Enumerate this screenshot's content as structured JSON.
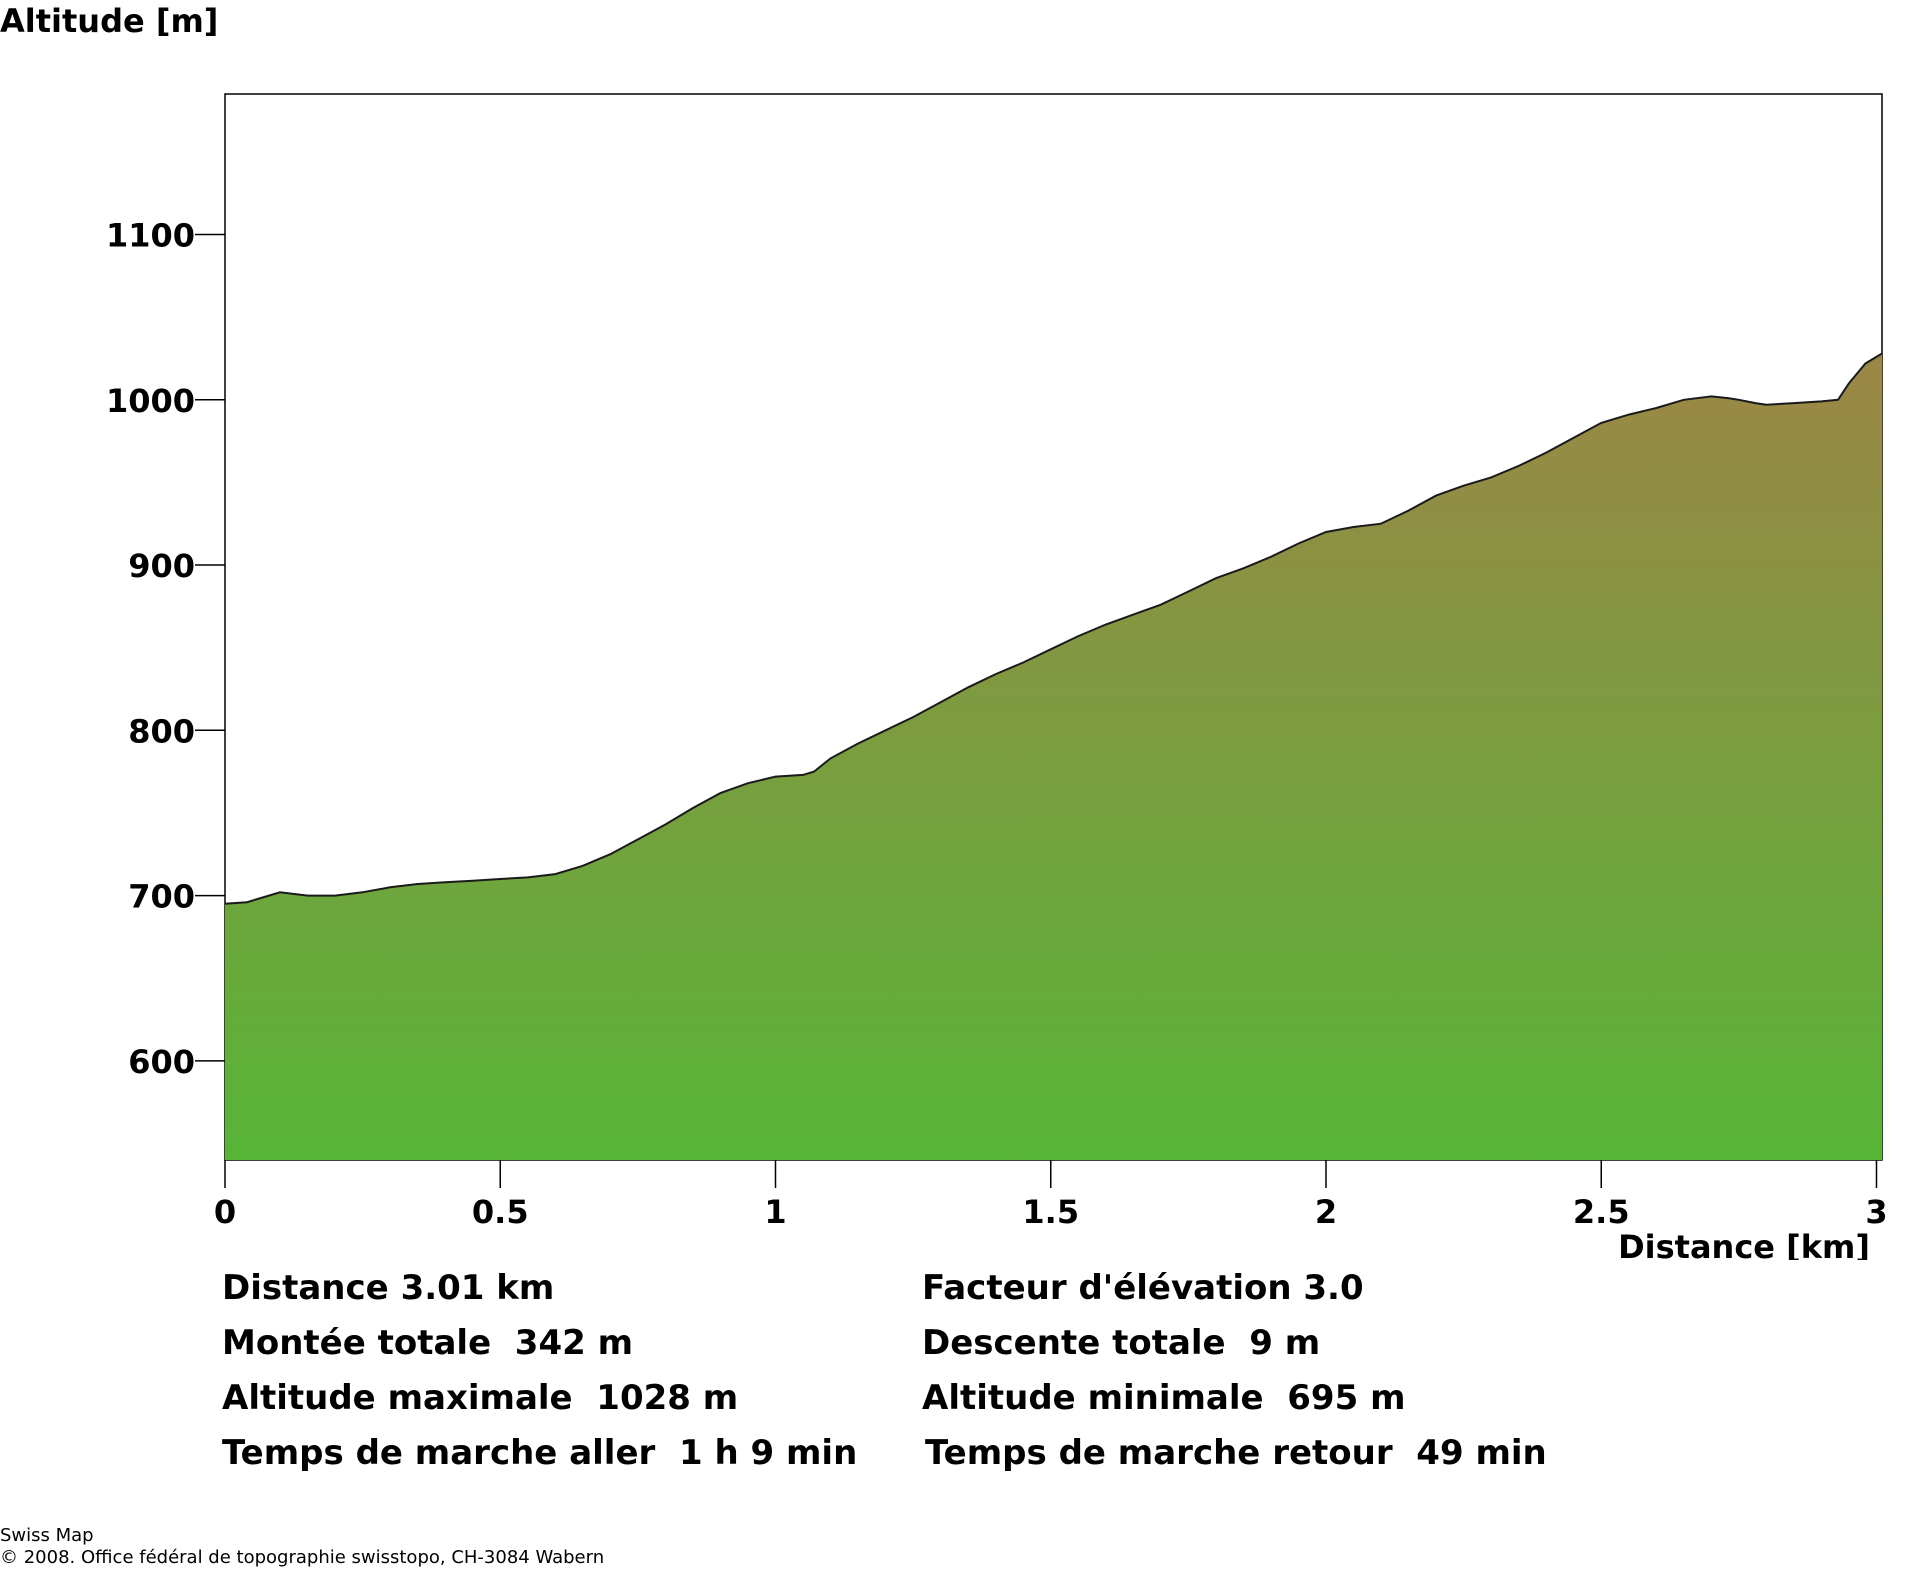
{
  "chart_data": {
    "type": "area",
    "title": "",
    "ylabel": "Altitude [m]",
    "xlabel": "Distance [km]",
    "xlim": [
      0,
      3.01
    ],
    "ylim": [
      540,
      1185
    ],
    "x_ticks": [
      0,
      0.5,
      1,
      1.5,
      2,
      2.5,
      3
    ],
    "x_tick_labels": [
      "0",
      "0.5",
      "1",
      "1.5",
      "2",
      "2.5",
      "3"
    ],
    "y_ticks": [
      600,
      700,
      800,
      900,
      1000,
      1100
    ],
    "y_tick_labels": [
      "600",
      "700",
      "800",
      "900",
      "1000",
      "1100"
    ],
    "grid": false,
    "fill_gradient": {
      "top": "#9c8646",
      "bottom": "#57b537"
    },
    "line_color": "#1a1a1a",
    "series": [
      {
        "x": [
          0,
          0.04,
          0.1,
          0.15,
          0.2,
          0.25,
          0.3,
          0.35,
          0.4,
          0.45,
          0.5,
          0.55,
          0.6,
          0.65,
          0.7,
          0.75,
          0.8,
          0.85,
          0.9,
          0.95,
          1.0,
          1.05,
          1.07,
          1.1,
          1.15,
          1.2,
          1.25,
          1.3,
          1.35,
          1.4,
          1.45,
          1.5,
          1.55,
          1.6,
          1.65,
          1.7,
          1.75,
          1.8,
          1.85,
          1.9,
          1.95,
          2.0,
          2.05,
          2.1,
          2.15,
          2.2,
          2.25,
          2.3,
          2.35,
          2.4,
          2.45,
          2.5,
          2.55,
          2.6,
          2.65,
          2.7,
          2.73,
          2.75,
          2.78,
          2.8,
          2.85,
          2.9,
          2.93,
          2.95,
          2.98,
          3.01
        ],
        "y": [
          695,
          696,
          702,
          700,
          700,
          702,
          705,
          707,
          708,
          709,
          710,
          711,
          713,
          718,
          725,
          734,
          743,
          753,
          762,
          768,
          772,
          773,
          775,
          783,
          792,
          800,
          808,
          817,
          826,
          834,
          841,
          849,
          857,
          864,
          870,
          876,
          884,
          892,
          898,
          905,
          913,
          920,
          923,
          925,
          933,
          942,
          948,
          953,
          960,
          968,
          977,
          986,
          991,
          995,
          1000,
          1002,
          1001,
          1000,
          998,
          997,
          998,
          999,
          1000,
          1010,
          1022,
          1028
        ]
      }
    ]
  },
  "stats": {
    "distance": "Distance 3.01 km",
    "elevation_factor": "Facteur d'élévation 3.0",
    "total_ascent": "Montée totale  342 m",
    "total_descent": "Descente totale  9 m",
    "max_altitude": "Altitude maximale  1028 m",
    "min_altitude": "Altitude minimale  695 m",
    "time_forward": "Temps de marche aller  1 h 9 min",
    "time_return": "Temps de marche retour  49 min"
  },
  "footer": {
    "brand": "Swiss Map",
    "copyright": "© 2008. Office fédéral de topographie swisstopo, CH-3084 Wabern"
  }
}
